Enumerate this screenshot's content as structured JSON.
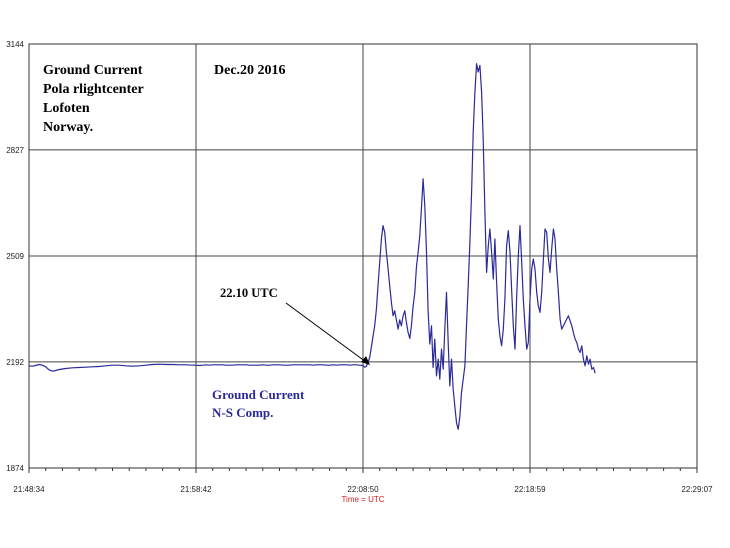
{
  "chart_data": {
    "type": "line",
    "xlabel": "Time = UTC",
    "ylabel": "",
    "x_ticks": [
      "21:48:34",
      "21:58:42",
      "22:08:50",
      "22:18:59",
      "22:29:07"
    ],
    "y_ticks": [
      1874,
      2192,
      2509,
      2827,
      3144
    ],
    "ylim": [
      1874,
      3144
    ],
    "grid": true,
    "annotations": {
      "title_lines": [
        "Ground Current",
        "Pola rlightcenter",
        "Lofoten",
        "Norway."
      ],
      "date": "Dec.20 2016",
      "callout": "22.10 UTC",
      "legend_lines": [
        "Ground Current",
        "N-S Comp."
      ]
    },
    "callout_point": {
      "x_index": 2,
      "y": 2192
    },
    "series": [
      {
        "name": "Ground Current N-S Comp.",
        "color": "#2a2a9a",
        "points": [
          [
            0.0,
            2180
          ],
          [
            0.02,
            2179
          ],
          [
            0.04,
            2181
          ],
          [
            0.06,
            2184
          ],
          [
            0.08,
            2182
          ],
          [
            0.1,
            2177
          ],
          [
            0.12,
            2168
          ],
          [
            0.14,
            2164
          ],
          [
            0.16,
            2166
          ],
          [
            0.18,
            2169
          ],
          [
            0.22,
            2172
          ],
          [
            0.26,
            2174
          ],
          [
            0.3,
            2175
          ],
          [
            0.34,
            2176
          ],
          [
            0.38,
            2177
          ],
          [
            0.42,
            2178
          ],
          [
            0.46,
            2180
          ],
          [
            0.5,
            2182
          ],
          [
            0.54,
            2182
          ],
          [
            0.58,
            2180
          ],
          [
            0.62,
            2179
          ],
          [
            0.66,
            2180
          ],
          [
            0.7,
            2182
          ],
          [
            0.74,
            2184
          ],
          [
            0.78,
            2185
          ],
          [
            0.82,
            2184
          ],
          [
            0.86,
            2184
          ],
          [
            0.9,
            2183
          ],
          [
            0.94,
            2183
          ],
          [
            0.98,
            2182
          ],
          [
            1.0,
            2182
          ],
          [
            1.02,
            2181
          ],
          [
            1.04,
            2182
          ],
          [
            1.06,
            2183
          ],
          [
            1.08,
            2182
          ],
          [
            1.1,
            2183
          ],
          [
            1.12,
            2183
          ],
          [
            1.14,
            2183
          ],
          [
            1.16,
            2183
          ],
          [
            1.18,
            2182
          ],
          [
            1.2,
            2182
          ],
          [
            1.22,
            2182
          ],
          [
            1.24,
            2183
          ],
          [
            1.26,
            2183
          ],
          [
            1.28,
            2183
          ],
          [
            1.3,
            2183
          ],
          [
            1.32,
            2182
          ],
          [
            1.34,
            2182
          ],
          [
            1.36,
            2182
          ],
          [
            1.38,
            2182
          ],
          [
            1.4,
            2183
          ],
          [
            1.42,
            2182
          ],
          [
            1.44,
            2182
          ],
          [
            1.46,
            2183
          ],
          [
            1.48,
            2183
          ],
          [
            1.5,
            2183
          ],
          [
            1.52,
            2182
          ],
          [
            1.54,
            2182
          ],
          [
            1.56,
            2182
          ],
          [
            1.58,
            2183
          ],
          [
            1.6,
            2183
          ],
          [
            1.62,
            2183
          ],
          [
            1.64,
            2183
          ],
          [
            1.66,
            2183
          ],
          [
            1.68,
            2183
          ],
          [
            1.7,
            2182
          ],
          [
            1.72,
            2183
          ],
          [
            1.74,
            2183
          ],
          [
            1.76,
            2183
          ],
          [
            1.78,
            2182
          ],
          [
            1.8,
            2182
          ],
          [
            1.82,
            2183
          ],
          [
            1.84,
            2182
          ],
          [
            1.86,
            2183
          ],
          [
            1.88,
            2183
          ],
          [
            1.9,
            2183
          ],
          [
            1.92,
            2182
          ],
          [
            1.94,
            2183
          ],
          [
            1.96,
            2183
          ],
          [
            1.98,
            2182
          ],
          [
            2.0,
            2181
          ],
          [
            2.01,
            2176
          ],
          [
            2.02,
            2178
          ],
          [
            2.03,
            2190
          ],
          [
            2.04,
            2205
          ],
          [
            2.05,
            2235
          ],
          [
            2.06,
            2268
          ],
          [
            2.07,
            2300
          ],
          [
            2.08,
            2350
          ],
          [
            2.09,
            2420
          ],
          [
            2.1,
            2490
          ],
          [
            2.11,
            2560
          ],
          [
            2.12,
            2600
          ],
          [
            2.13,
            2580
          ],
          [
            2.14,
            2520
          ],
          [
            2.15,
            2470
          ],
          [
            2.16,
            2420
          ],
          [
            2.17,
            2370
          ],
          [
            2.18,
            2330
          ],
          [
            2.19,
            2345
          ],
          [
            2.2,
            2318
          ],
          [
            2.21,
            2290
          ],
          [
            2.22,
            2318
          ],
          [
            2.23,
            2300
          ],
          [
            2.24,
            2330
          ],
          [
            2.25,
            2345
          ],
          [
            2.26,
            2310
          ],
          [
            2.27,
            2280
          ],
          [
            2.28,
            2262
          ],
          [
            2.29,
            2300
          ],
          [
            2.3,
            2358
          ],
          [
            2.31,
            2400
          ],
          [
            2.32,
            2475
          ],
          [
            2.33,
            2520
          ],
          [
            2.34,
            2570
          ],
          [
            2.35,
            2650
          ],
          [
            2.36,
            2740
          ],
          [
            2.37,
            2660
          ],
          [
            2.38,
            2520
          ],
          [
            2.39,
            2345
          ],
          [
            2.4,
            2245
          ],
          [
            2.41,
            2300
          ],
          [
            2.42,
            2175
          ],
          [
            2.43,
            2260
          ],
          [
            2.44,
            2150
          ],
          [
            2.45,
            2200
          ],
          [
            2.46,
            2140
          ],
          [
            2.47,
            2230
          ],
          [
            2.48,
            2170
          ],
          [
            2.49,
            2290
          ],
          [
            2.5,
            2400
          ],
          [
            2.51,
            2250
          ],
          [
            2.52,
            2120
          ],
          [
            2.53,
            2200
          ],
          [
            2.54,
            2110
          ],
          [
            2.55,
            2060
          ],
          [
            2.56,
            2010
          ],
          [
            2.57,
            1990
          ],
          [
            2.58,
            2030
          ],
          [
            2.59,
            2100
          ],
          [
            2.6,
            2140
          ],
          [
            2.61,
            2180
          ],
          [
            2.62,
            2300
          ],
          [
            2.63,
            2420
          ],
          [
            2.64,
            2550
          ],
          [
            2.65,
            2700
          ],
          [
            2.66,
            2880
          ],
          [
            2.67,
            3000
          ],
          [
            2.68,
            3085
          ],
          [
            2.69,
            3060
          ],
          [
            2.7,
            3080
          ],
          [
            2.71,
            3000
          ],
          [
            2.72,
            2860
          ],
          [
            2.73,
            2640
          ],
          [
            2.74,
            2460
          ],
          [
            2.75,
            2540
          ],
          [
            2.76,
            2590
          ],
          [
            2.77,
            2520
          ],
          [
            2.78,
            2440
          ],
          [
            2.79,
            2560
          ],
          [
            2.8,
            2430
          ],
          [
            2.81,
            2320
          ],
          [
            2.82,
            2270
          ],
          [
            2.83,
            2240
          ],
          [
            2.84,
            2290
          ],
          [
            2.85,
            2380
          ],
          [
            2.86,
            2540
          ],
          [
            2.87,
            2585
          ],
          [
            2.88,
            2520
          ],
          [
            2.89,
            2410
          ],
          [
            2.9,
            2300
          ],
          [
            2.91,
            2230
          ],
          [
            2.92,
            2380
          ],
          [
            2.93,
            2510
          ],
          [
            2.94,
            2600
          ],
          [
            2.95,
            2490
          ],
          [
            2.96,
            2380
          ],
          [
            2.97,
            2300
          ],
          [
            2.98,
            2230
          ],
          [
            2.99,
            2250
          ],
          [
            3.0,
            2380
          ],
          [
            3.01,
            2470
          ],
          [
            3.02,
            2500
          ],
          [
            3.03,
            2470
          ],
          [
            3.04,
            2400
          ],
          [
            3.05,
            2360
          ],
          [
            3.06,
            2340
          ],
          [
            3.07,
            2400
          ],
          [
            3.08,
            2500
          ],
          [
            3.09,
            2590
          ],
          [
            3.1,
            2580
          ],
          [
            3.11,
            2500
          ],
          [
            3.12,
            2460
          ],
          [
            3.13,
            2530
          ],
          [
            3.14,
            2590
          ],
          [
            3.15,
            2560
          ],
          [
            3.16,
            2470
          ],
          [
            3.17,
            2400
          ],
          [
            3.18,
            2320
          ],
          [
            3.19,
            2290
          ],
          [
            3.2,
            2300
          ],
          [
            3.21,
            2310
          ],
          [
            3.22,
            2320
          ],
          [
            3.23,
            2330
          ],
          [
            3.24,
            2315
          ],
          [
            3.25,
            2300
          ],
          [
            3.26,
            2280
          ],
          [
            3.27,
            2260
          ],
          [
            3.28,
            2250
          ],
          [
            3.29,
            2230
          ],
          [
            3.3,
            2220
          ],
          [
            3.31,
            2240
          ],
          [
            3.32,
            2200
          ],
          [
            3.33,
            2180
          ],
          [
            3.34,
            2210
          ],
          [
            3.35,
            2185
          ],
          [
            3.36,
            2200
          ],
          [
            3.37,
            2170
          ],
          [
            3.38,
            2175
          ],
          [
            3.39,
            2158
          ]
        ]
      }
    ]
  }
}
